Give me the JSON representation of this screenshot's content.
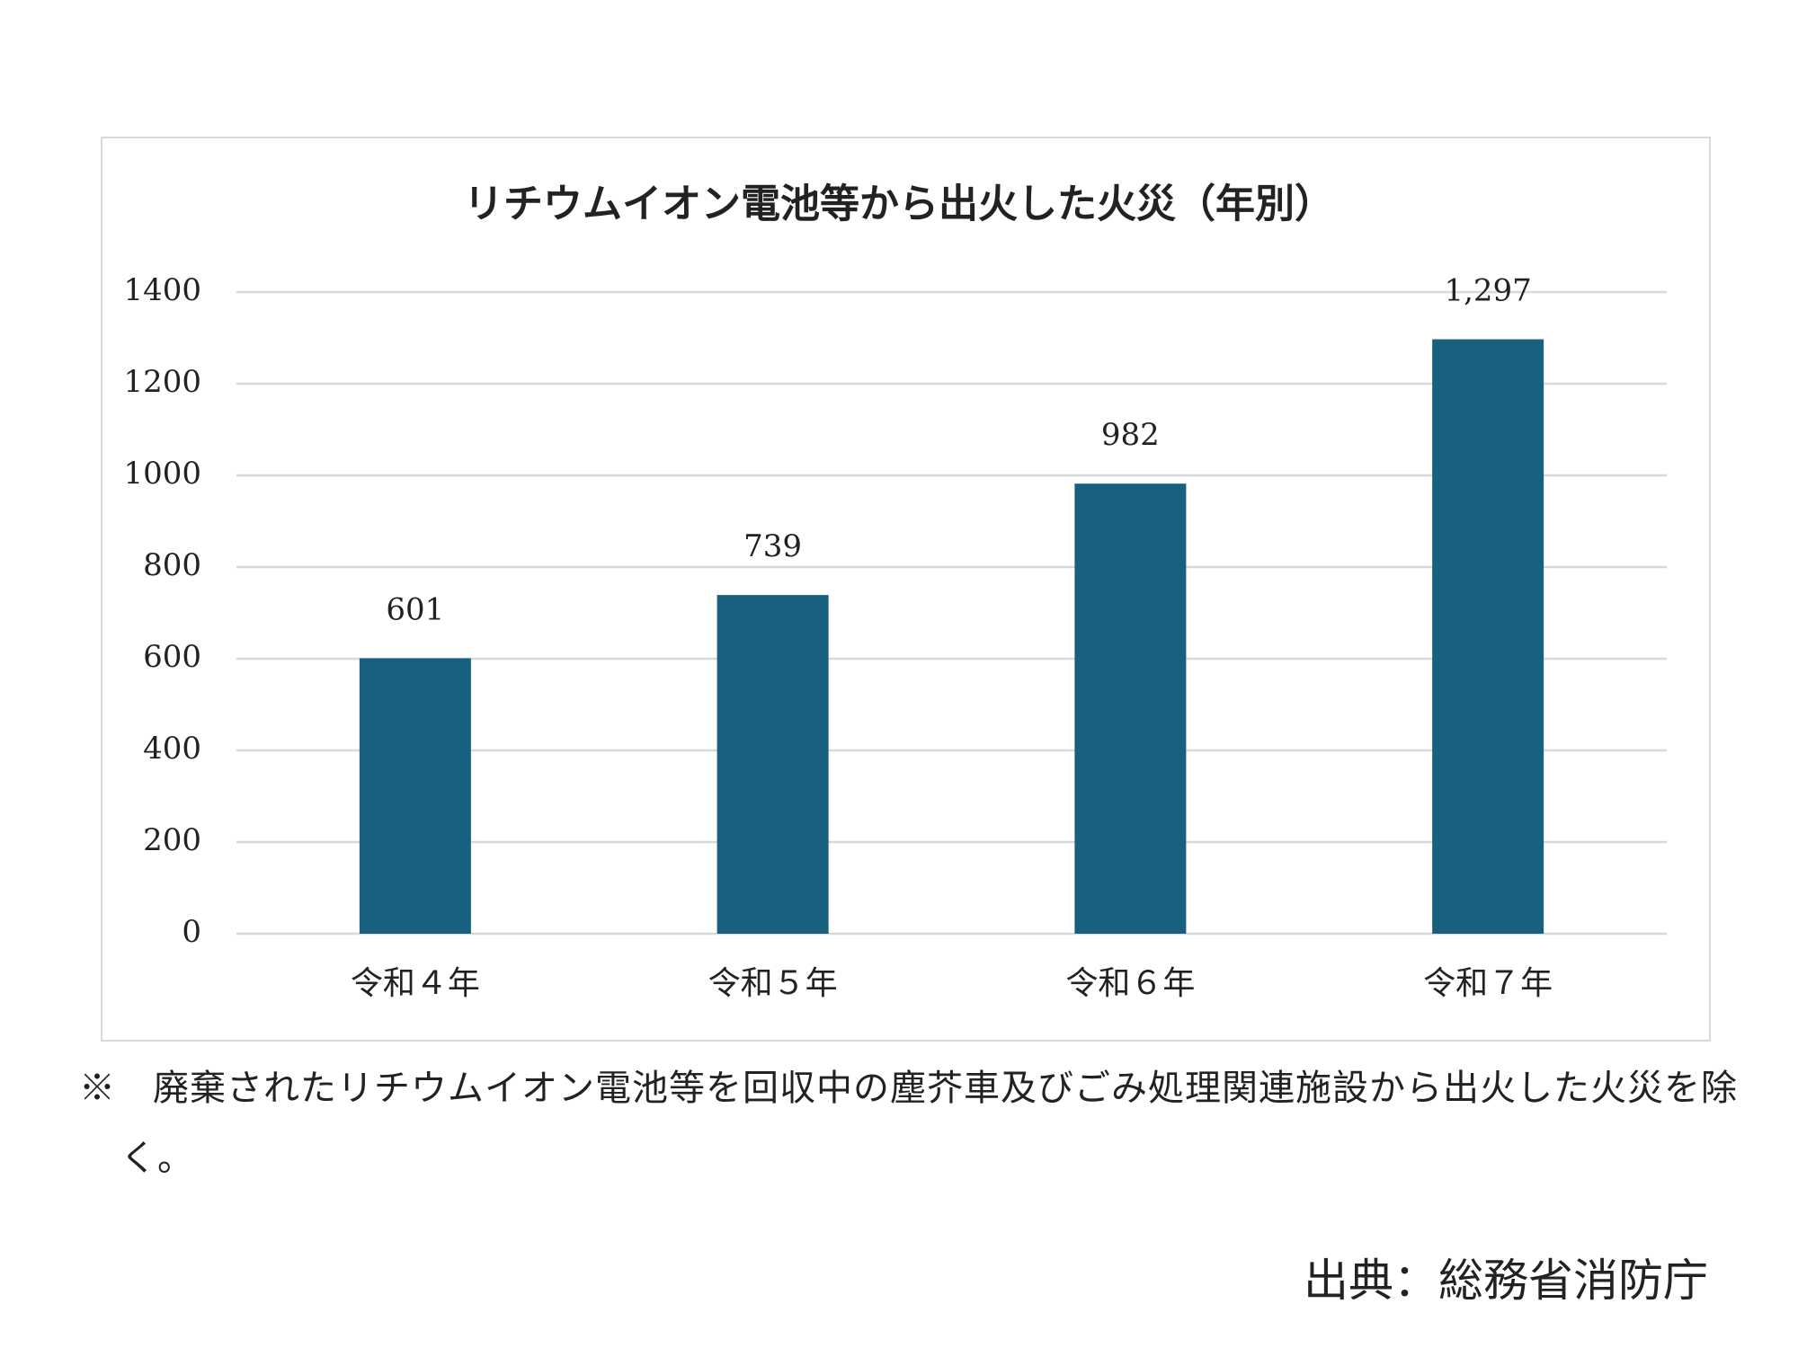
{
  "chart_data": {
    "type": "bar",
    "title": "リチウムイオン電池等から出火した火災（年別）",
    "categories": [
      "令和４年",
      "令和５年",
      "令和６年",
      "令和７年"
    ],
    "values": [
      601,
      739,
      982,
      1297
    ],
    "value_labels": [
      "601",
      "739",
      "982",
      "1,297"
    ],
    "color": "#17607f",
    "ylim": [
      0,
      1400
    ],
    "yticks": [
      0,
      200,
      400,
      600,
      800,
      1000,
      1200,
      1400
    ],
    "grid": true
  },
  "note": "※　廃棄されたリチウムイオン電池等を回収中の塵芥車及びごみ処理関連施設から出火した火災を除く。",
  "source": "出典：総務省消防庁"
}
